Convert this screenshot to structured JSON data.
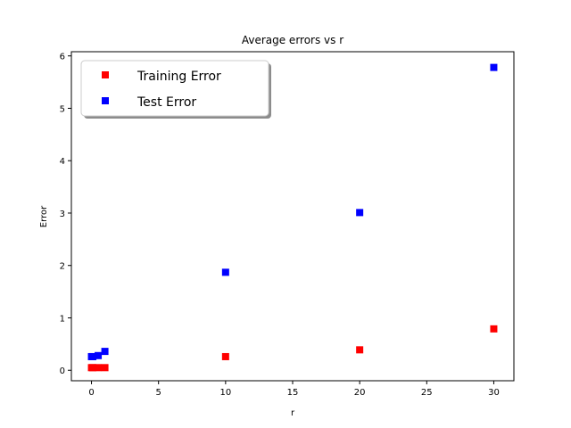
{
  "chart_data": {
    "type": "scatter",
    "title": "Average errors vs r",
    "xlabel": "r",
    "ylabel": "Error",
    "xlim": [
      -1.5,
      31.5
    ],
    "ylim": [
      -0.2,
      6.08
    ],
    "xticks": [
      0,
      5,
      10,
      15,
      20,
      25,
      30
    ],
    "yticks": [
      0,
      1,
      2,
      3,
      4,
      5,
      6
    ],
    "grid": false,
    "legend_position": "top-left",
    "series": [
      {
        "name": "Training Error",
        "color": "#ff0000",
        "marker": "square",
        "x": [
          0,
          0.1,
          0.5,
          1,
          10,
          20,
          30
        ],
        "y": [
          0.05,
          0.05,
          0.05,
          0.05,
          0.26,
          0.39,
          0.79
        ]
      },
      {
        "name": "Test Error",
        "color": "#0000ff",
        "marker": "square",
        "x": [
          0,
          0.1,
          0.5,
          1,
          10,
          20,
          30
        ],
        "y": [
          0.26,
          0.26,
          0.28,
          0.36,
          1.87,
          3.01,
          5.78
        ]
      }
    ]
  }
}
